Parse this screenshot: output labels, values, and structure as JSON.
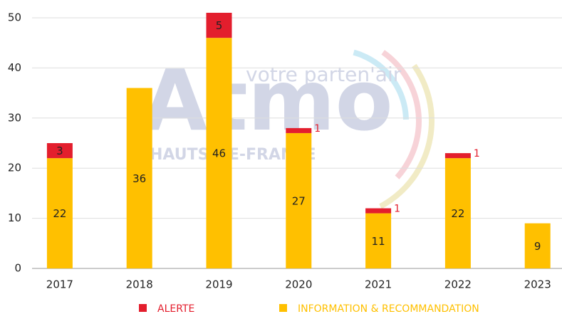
{
  "chart_data": {
    "type": "stacked-bar",
    "categories": [
      "2017",
      "2018",
      "2019",
      "2020",
      "2021",
      "2022",
      "2023"
    ],
    "series": [
      {
        "name": "ALERTE",
        "color": "#e31e2d",
        "values": [
          3,
          null,
          5,
          1,
          1,
          1,
          null
        ]
      },
      {
        "name": "INFORMATION & RECOMMANDATION",
        "color": "#ffc000",
        "values": [
          22,
          36,
          46,
          27,
          11,
          22,
          9
        ]
      }
    ],
    "ylim": [
      0,
      50
    ],
    "yticks": [
      0,
      10,
      20,
      30,
      40,
      50
    ],
    "grid": true,
    "legend": "bottom"
  },
  "watermark": {
    "logo": "Atmo",
    "tagline": "votre parten'air",
    "region": "HAUTS-DE-FRANCE"
  }
}
